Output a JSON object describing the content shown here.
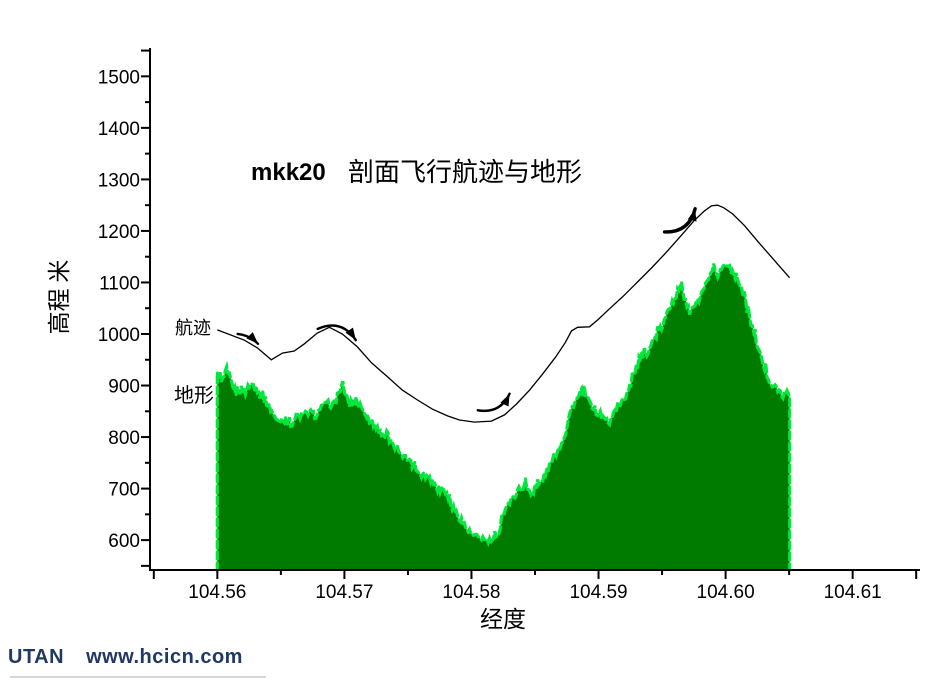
{
  "chart": {
    "title_code": "mkk20",
    "title_text": "剖面飞行航迹与地形",
    "xlabel": "经度",
    "ylabel": "高程 米",
    "series_labels": {
      "trajectory": "航迹",
      "terrain": "地形"
    }
  },
  "footer": {
    "brand": "UTAN",
    "url": "www.hcicn.com",
    "color": "#1f3864"
  },
  "chart_data": {
    "type": "area",
    "title": "mkk20 剖面飞行航迹与地形",
    "xlabel": "经度",
    "ylabel": "高程 米",
    "xlim": [
      104.5547,
      104.6153
    ],
    "ylim": [
      542,
      1555
    ],
    "grid": false,
    "x_axis": {
      "major_ticks": [
        104.56,
        104.57,
        104.58,
        104.59,
        104.6,
        104.61
      ],
      "tick_labels": [
        "104.56",
        "104.57",
        "104.58",
        "104.59",
        "104.60",
        "104.61"
      ],
      "minor_ticks": [
        104.565,
        104.575,
        104.585,
        104.595,
        104.605
      ],
      "end_ticks": [
        104.555,
        104.615
      ]
    },
    "y_axis": {
      "major_ticks": [
        600,
        700,
        800,
        900,
        1000,
        1100,
        1200,
        1300,
        1400,
        1500
      ],
      "tick_labels": [
        "600",
        "700",
        "800",
        "900",
        "1000",
        "1100",
        "1200",
        "1300",
        "1400",
        "1500"
      ],
      "minor_ticks": [
        650,
        750,
        850,
        950,
        1050,
        1150,
        1250,
        1350,
        1450
      ],
      "end_ticks": [
        550,
        1550
      ]
    },
    "colors": {
      "terrain_fill": "#007b00",
      "terrain_edge": "#00e83c",
      "trajectory": "#000000",
      "axis": "#000000"
    },
    "series": [
      {
        "name": "航迹",
        "type": "line",
        "points": [
          [
            104.56,
            1008
          ],
          [
            104.56213,
            988
          ],
          [
            104.56315,
            973
          ],
          [
            104.56425,
            950
          ],
          [
            104.56512,
            963
          ],
          [
            104.56606,
            967
          ],
          [
            104.56685,
            981
          ],
          [
            104.56787,
            1002
          ],
          [
            104.56882,
            1013
          ],
          [
            104.56984,
            1000
          ],
          [
            104.57102,
            975
          ],
          [
            104.57213,
            944
          ],
          [
            104.57339,
            917
          ],
          [
            104.57457,
            891
          ],
          [
            104.57575,
            872
          ],
          [
            104.57693,
            854
          ],
          [
            104.57811,
            841
          ],
          [
            104.57906,
            833
          ],
          [
            104.58024,
            829
          ],
          [
            104.58157,
            831
          ],
          [
            104.5826,
            843
          ],
          [
            104.58354,
            864
          ],
          [
            104.58457,
            891
          ],
          [
            104.58559,
            922
          ],
          [
            104.58661,
            955
          ],
          [
            104.5874,
            984
          ],
          [
            104.58787,
            1006
          ],
          [
            104.58835,
            1013
          ],
          [
            104.58929,
            1014
          ],
          [
            104.58992,
            1027
          ],
          [
            104.59087,
            1049
          ],
          [
            104.59189,
            1072
          ],
          [
            104.59299,
            1099
          ],
          [
            104.59417,
            1128
          ],
          [
            104.59535,
            1159
          ],
          [
            104.59654,
            1192
          ],
          [
            104.59756,
            1221
          ],
          [
            104.59835,
            1239
          ],
          [
            104.5989,
            1249
          ],
          [
            104.59937,
            1250
          ],
          [
            104.59984,
            1245
          ],
          [
            104.60055,
            1233
          ],
          [
            104.6015,
            1210
          ],
          [
            104.60252,
            1180
          ],
          [
            104.60362,
            1149
          ],
          [
            104.60465,
            1120
          ],
          [
            104.60504,
            1109
          ]
        ]
      },
      {
        "name": "地形",
        "type": "area",
        "lon_start": 104.56,
        "lon_step": 0.000315,
        "elevations": [
          925,
          905,
          922,
          918,
          895,
          882,
          893,
          888,
          900,
          902,
          888,
          878,
          872,
          858,
          845,
          830,
          827,
          838,
          822,
          830,
          843,
          840,
          844,
          849,
          844,
          840,
          856,
          861,
          866,
          856,
          882,
          896,
          884,
          863,
          869,
          865,
          854,
          848,
          832,
          820,
          816,
          809,
          800,
          790,
          784,
          776,
          770,
          760,
          752,
          744,
          735,
          728,
          722,
          720,
          712,
          700,
          697,
          690,
          675,
          660,
          648,
          640,
          625,
          615,
          608,
          604,
          605,
          599,
          597,
          600,
          603,
          640,
          665,
          672,
          682,
          697,
          700,
          704,
          696,
          692,
          704,
          714,
          729,
          744,
          759,
          774,
          789,
          809,
          844,
          864,
          874,
          888,
          879,
          864,
          859,
          844,
          839,
          834,
          829,
          844,
          854,
          864,
          879,
          899,
          919,
          939,
          949,
          959,
          974,
          988,
          1000,
          1012,
          1030,
          1052,
          1066,
          1082,
          1092,
          1060,
          1042,
          1052,
          1062,
          1072,
          1092,
          1110,
          1120,
          1114,
          1128,
          1134,
          1128,
          1118,
          1108,
          1088,
          1058,
          1028,
          1000,
          978,
          948,
          928,
          908,
          898,
          888,
          884,
          879,
          875
        ]
      }
    ],
    "annotations": {
      "arrows": [
        {
          "x1": 104.5616,
          "y1": 1000,
          "x2": 104.5632,
          "y2": 981,
          "bend": 0.18,
          "width": 2.4
        },
        {
          "x1": 104.5679,
          "y1": 1010,
          "x2": 104.5709,
          "y2": 988,
          "bend": 0.42,
          "width": 2.4
        },
        {
          "x1": 104.5805,
          "y1": 852,
          "x2": 104.583,
          "y2": 884,
          "bend": -0.38,
          "width": 2.4
        },
        {
          "x1": 104.5952,
          "y1": 1198,
          "x2": 104.5976,
          "y2": 1243,
          "bend": -0.4,
          "width": 3.4
        }
      ]
    },
    "legend_position": "inside-left"
  }
}
